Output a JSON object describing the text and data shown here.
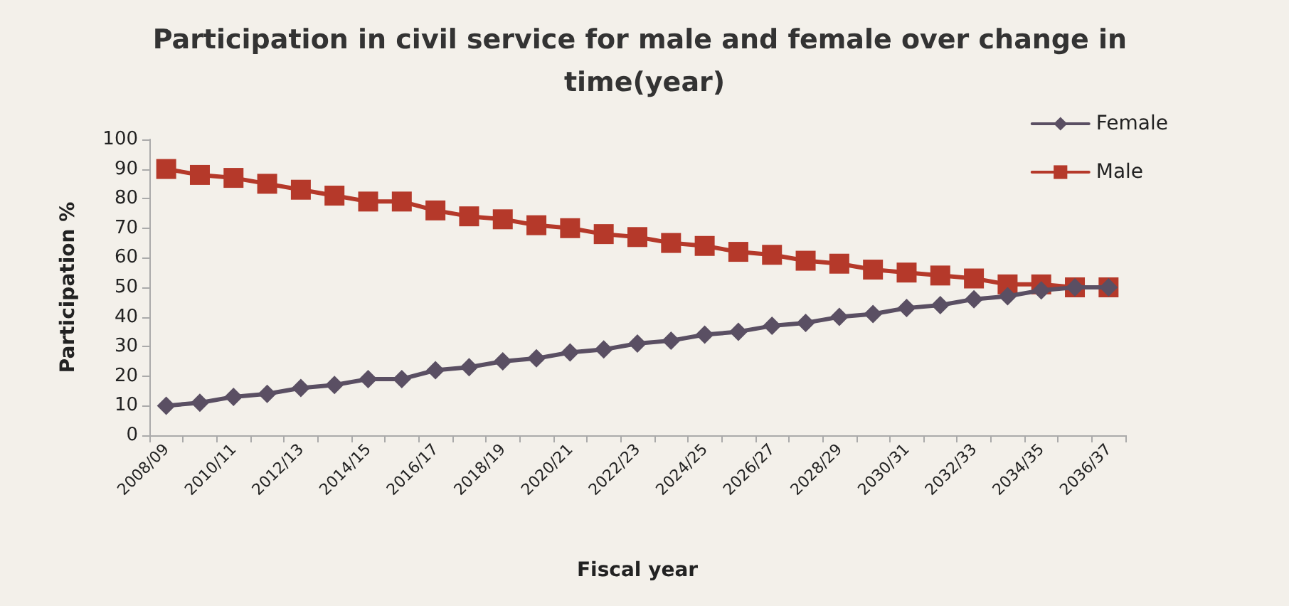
{
  "chart_data": {
    "type": "line",
    "title": "Participation in civil service for male and female over change in time(year)",
    "xlabel": "Fiscal year",
    "ylabel": "Participation %",
    "categories": [
      "2008/09",
      null,
      "2010/11",
      null,
      "2012/13",
      null,
      "2014/15",
      null,
      "2016/17",
      null,
      "2018/19",
      null,
      "2020/21",
      null,
      "2022/23",
      null,
      "2024/25",
      null,
      "2026/27",
      null,
      "2028/29",
      null,
      "2030/31",
      null,
      "2032/33",
      null,
      "2034/35",
      null,
      "2036/37"
    ],
    "series": [
      {
        "name": "Female",
        "color": "#5a4f63",
        "marker": "diamond",
        "values": [
          10,
          11,
          13,
          14,
          16,
          17,
          19,
          19,
          22,
          23,
          25,
          26,
          28,
          29,
          31,
          32,
          34,
          35,
          37,
          38,
          40,
          41,
          43,
          44,
          46,
          47,
          49,
          50,
          50
        ]
      },
      {
        "name": "Male",
        "color": "#b5392a",
        "marker": "square",
        "values": [
          90,
          88,
          87,
          85,
          83,
          81,
          79,
          79,
          76,
          74,
          73,
          71,
          70,
          68,
          67,
          65,
          64,
          62,
          61,
          59,
          58,
          56,
          55,
          54,
          53,
          51,
          51,
          50,
          50
        ]
      }
    ],
    "ylim": [
      0,
      100
    ],
    "yticks": [
      0,
      10,
      20,
      30,
      40,
      50,
      60,
      70,
      80,
      90,
      100
    ],
    "grid": false,
    "legend": "top right"
  }
}
